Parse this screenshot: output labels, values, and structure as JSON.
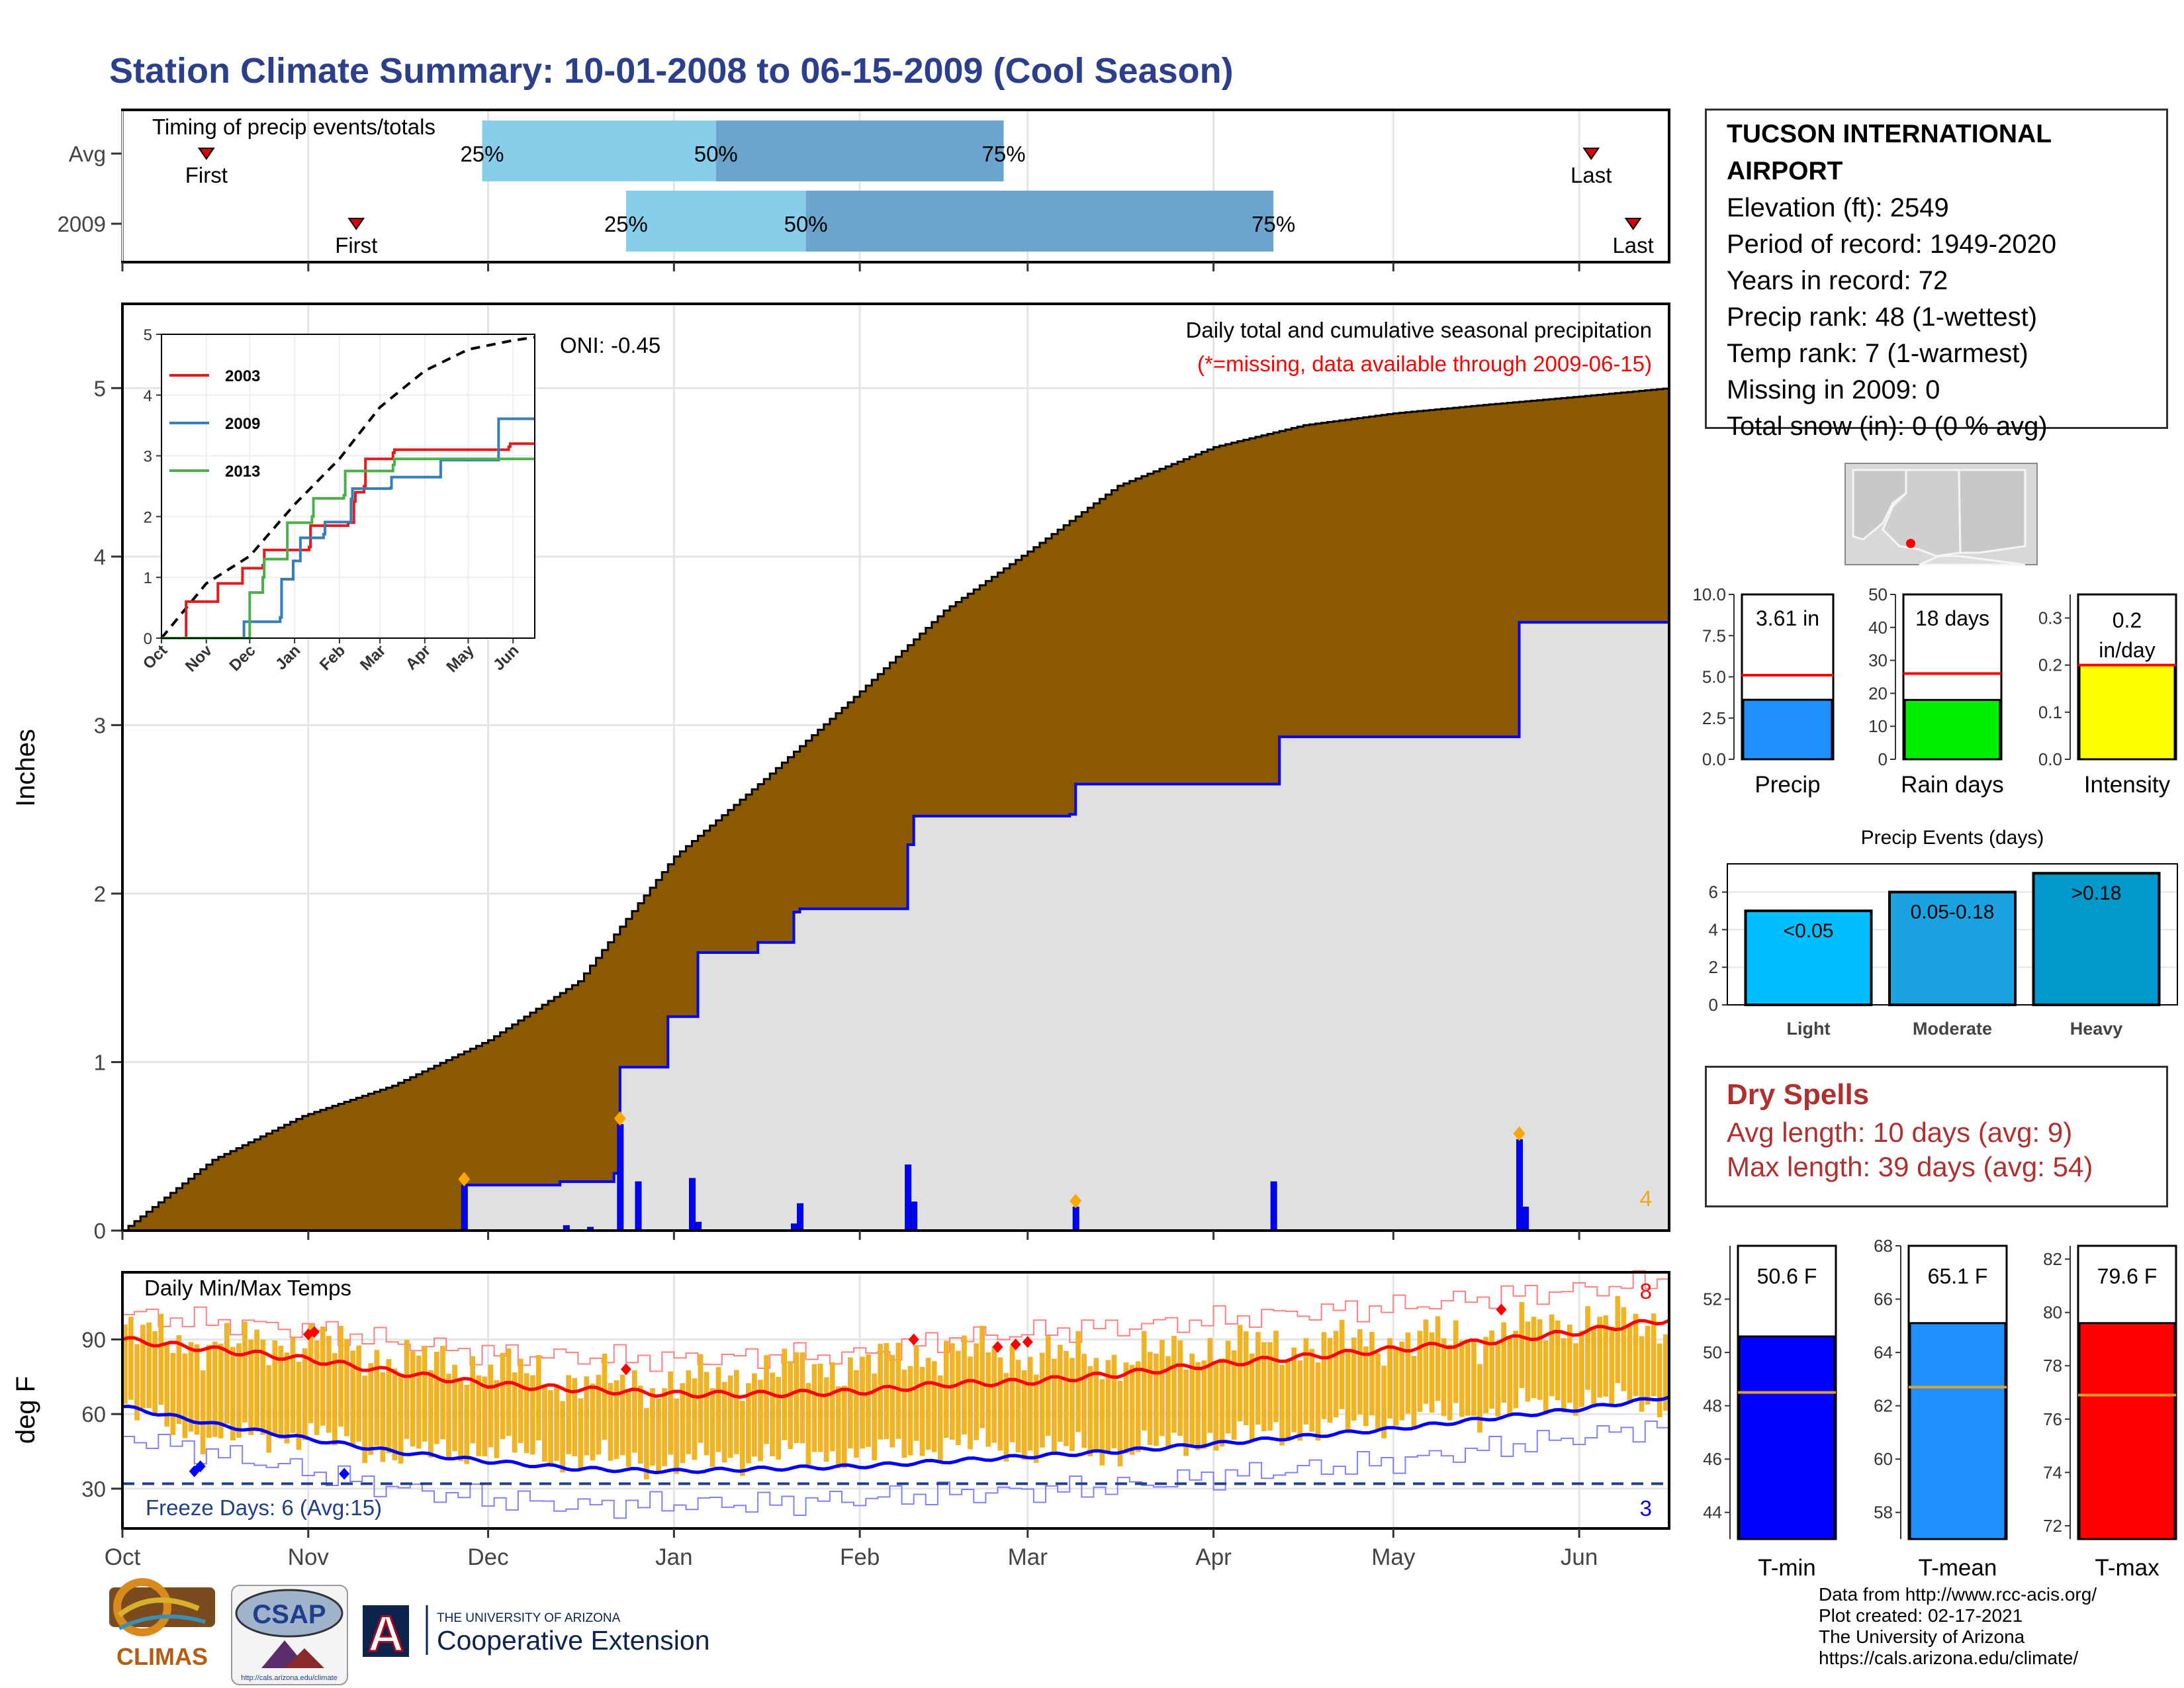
{
  "title": "Station Climate Summary: 10-01-2008 to 06-15-2009 (Cool Season)",
  "station": {
    "name": "TUCSON INTERNATIONAL AIRPORT",
    "lines": [
      "Elevation (ft): 2549",
      "Period of record: 1949-2020",
      "Years in record: 72",
      "Precip rank: 48 (1-wettest)",
      "Temp rank: 7 (1-warmest)",
      "Missing in 2009: 0",
      "Total snow (in): 0 (0 % avg)"
    ]
  },
  "colors": {
    "title": "#2b3f8c",
    "cumulative_avg": "#8b5a00",
    "cumulative_2009": "#e0e0e0",
    "line_2009": "#0000ff",
    "marker": "#ffa500",
    "red_text": "#ff0000",
    "dry_spell": "#b03030",
    "tmax_band": "#f0b323",
    "tmin_line": "#0000ff",
    "tmax_line": "#ff0000"
  },
  "timing_panel": {
    "label": "Timing of precip events/totals",
    "rows": [
      {
        "name": "Avg",
        "first": "2008-10-15",
        "last": "2009-06-03",
        "p25": "2008-11-30",
        "p50": "2009-01-08",
        "p75": "2009-02-25"
      },
      {
        "name": "2009",
        "first": "2008-11-09",
        "last": "2009-06-10",
        "p25": "2008-12-24",
        "p50": "2009-01-23",
        "p75": "2009-04-11"
      }
    ],
    "first_label": "First",
    "last_label": "Last",
    "p25_label": "25%",
    "p50_label": "50%",
    "p75_label": "75%"
  },
  "precip_panel": {
    "ylabel": "Inches",
    "oni": "ONI: -0.45",
    "caption": "Daily total and cumulative seasonal precipitation",
    "missing_note": "(*=missing, data available through 2009-06-15)",
    "count_label": "4",
    "ylim": [
      0,
      5.5
    ],
    "yticks": [
      0,
      1,
      2,
      3,
      4,
      5
    ]
  },
  "inset": {
    "ylim": [
      0,
      5
    ],
    "yticks": [
      0,
      1,
      2,
      3,
      4,
      5
    ],
    "xticks": [
      "Oct",
      "Nov",
      "Dec",
      "Jan",
      "Feb",
      "Mar",
      "Apr",
      "May",
      "Jun"
    ],
    "legend": [
      {
        "name": "2003",
        "color": "#e41a1c"
      },
      {
        "name": "2009",
        "color": "#377eb8"
      },
      {
        "name": "2013",
        "color": "#4daf4a"
      }
    ]
  },
  "temp_panel": {
    "ylabel": "deg F",
    "label": "Daily Min/Max Temps",
    "freeze_label": "Freeze Days: 6 (Avg:15)",
    "count_max": "8",
    "count_min": "3",
    "yticks": [
      30,
      60,
      90
    ],
    "ylim": [
      14,
      117
    ],
    "freeze_line": 32
  },
  "x_axis": {
    "months": [
      "Oct",
      "Nov",
      "Dec",
      "Jan",
      "Feb",
      "Mar",
      "Apr",
      "May",
      "Jun"
    ],
    "month_days": [
      0,
      31,
      61,
      92,
      123,
      151,
      182,
      212,
      243
    ],
    "total_days": 258
  },
  "summary_bars": {
    "precip": {
      "label": "Precip",
      "value": 3.61,
      "text": "3.61 in",
      "avg": 5.1,
      "ylim": [
        0,
        10
      ],
      "yticks": [
        "0.0",
        "2.5",
        "5.0",
        "7.5",
        "10.0"
      ],
      "color": "#1e90ff"
    },
    "rain_days": {
      "label": "Rain days",
      "value": 18,
      "text": "18 days",
      "avg": 26,
      "ylim": [
        0,
        50
      ],
      "yticks": [
        "0",
        "10",
        "20",
        "30",
        "40",
        "50"
      ],
      "color": "#00ee00"
    },
    "intensity": {
      "label": "Intensity",
      "value": 0.2,
      "text": "0.2",
      "text2": "in/day",
      "avg": 0.2,
      "ylim": [
        0,
        0.35
      ],
      "yticks": [
        "0.0",
        "0.1",
        "0.2",
        "0.3"
      ],
      "color": "#ffff00"
    }
  },
  "events": {
    "title": "Precip Events (days)",
    "categories": [
      "Light",
      "Moderate",
      "Heavy"
    ],
    "values": [
      5,
      6,
      7
    ],
    "labels": [
      "<0.05",
      "0.05-0.18",
      ">0.18"
    ],
    "colors": [
      "#00bfff",
      "#1aa3e0",
      "#0099cc"
    ],
    "yticks": [
      "0",
      "2",
      "4",
      "6"
    ]
  },
  "dry_spells": {
    "title": "Dry Spells",
    "avg_length": "Avg length: 10 days (avg: 9)",
    "max_length": "Max length: 39 days (avg: 54)"
  },
  "temp_bars": {
    "tmin": {
      "label": "T-min",
      "value": 50.6,
      "text": "50.6 F",
      "avg": 48.5,
      "ylim": [
        43,
        54
      ],
      "yticks": [
        "44",
        "46",
        "48",
        "50",
        "52"
      ],
      "color": "#0000ff"
    },
    "tmean": {
      "label": "T-mean",
      "value": 65.1,
      "text": "65.1 F",
      "avg": 62.7,
      "ylim": [
        57,
        68
      ],
      "yticks": [
        "58",
        "60",
        "62",
        "64",
        "66",
        "68"
      ],
      "color": "#1e90ff"
    },
    "tmax": {
      "label": "T-max",
      "value": 79.6,
      "text": "79.6 F",
      "avg": 76.9,
      "ylim": [
        71.5,
        82.5
      ],
      "yticks": [
        "72",
        "74",
        "76",
        "78",
        "80",
        "82"
      ],
      "color": "#ff0000"
    }
  },
  "credits": [
    "Data from http://www.rcc-acis.org/",
    "Plot created: 02-17-2021",
    "The University of Arizona",
    "https://cals.arizona.edu/climate/"
  ],
  "logos": {
    "climas": "CLIMAS",
    "csap": "CSAP",
    "csap_url": "http://cals.arizona.edu/climate",
    "ua_small": "THE UNIVERSITY OF ARIZONA",
    "ua_big": "Cooperative Extension",
    "ua_letter": "A"
  },
  "chart_data": [
    {
      "type": "area",
      "title": "Daily total and cumulative seasonal precipitation",
      "ylabel": "Inches",
      "ylim": [
        0,
        5.5
      ],
      "series": [
        {
          "name": "Avg",
          "x": [
            0,
            15,
            30,
            45,
            61,
            76,
            92,
            107,
            123,
            137,
            151,
            166,
            182,
            197,
            212,
            227,
            243,
            258
          ],
          "values": [
            0.0,
            0.42,
            0.68,
            0.86,
            1.13,
            1.48,
            2.22,
            2.68,
            3.2,
            3.68,
            4.03,
            4.42,
            4.65,
            4.78,
            4.85,
            4.9,
            4.95,
            5.0
          ]
        },
        {
          "name": "2009",
          "x": [
            0,
            56,
            57,
            73,
            82,
            83,
            90,
            91,
            95,
            96,
            105,
            106,
            112,
            113,
            131,
            132,
            158,
            159,
            192,
            193,
            232,
            233,
            258
          ],
          "values": [
            0.0,
            0.0,
            0.27,
            0.29,
            0.34,
            0.97,
            0.97,
            1.27,
            1.27,
            1.65,
            1.65,
            1.71,
            1.89,
            1.91,
            2.29,
            2.46,
            2.47,
            2.65,
            2.65,
            2.93,
            2.93,
            3.61,
            3.61
          ]
        },
        {
          "name": "daily 2009",
          "x": [
            57,
            74,
            78,
            83,
            86,
            95,
            96,
            112,
            113,
            131,
            132,
            159,
            192,
            233,
            234
          ],
          "values": [
            0.27,
            0.03,
            0.02,
            0.63,
            0.29,
            0.31,
            0.05,
            0.04,
            0.16,
            0.39,
            0.17,
            0.14,
            0.29,
            0.54,
            0.14
          ]
        }
      ]
    },
    {
      "type": "line",
      "title": "",
      "xticks": [
        "Oct",
        "Nov",
        "Dec",
        "Jan",
        "Feb",
        "Mar",
        "Apr",
        "May",
        "Jun"
      ],
      "ylim": [
        0,
        5
      ],
      "series": [
        {
          "name": "avg",
          "x": [
            0,
            31,
            61,
            92,
            123,
            151,
            182,
            212,
            243,
            258
          ],
          "values": [
            0,
            0.9,
            1.35,
            2.2,
            2.95,
            3.8,
            4.4,
            4.75,
            4.9,
            4.95
          ]
        },
        {
          "name": "2003",
          "x": [
            0,
            16,
            17,
            38,
            39,
            55,
            56,
            70,
            71,
            102,
            103,
            129,
            133,
            134,
            140,
            141,
            160,
            161,
            240,
            241,
            258
          ],
          "values": [
            0,
            0,
            0.6,
            0.6,
            0.9,
            0.9,
            1.15,
            1.2,
            1.45,
            1.5,
            1.85,
            1.9,
            2.25,
            2.4,
            2.5,
            2.95,
            3.05,
            3.1,
            3.15,
            3.2,
            3.2
          ]
        },
        {
          "name": "2009",
          "x": [
            0,
            56,
            57,
            82,
            83,
            90,
            91,
            95,
            96,
            112,
            113,
            131,
            132,
            158,
            159,
            192,
            193,
            232,
            233,
            258
          ],
          "values": [
            0,
            0,
            0.27,
            0.34,
            0.97,
            0.97,
            1.27,
            1.27,
            1.65,
            1.71,
            1.91,
            2.29,
            2.46,
            2.47,
            2.65,
            2.65,
            2.93,
            2.93,
            3.61,
            3.61
          ]
        },
        {
          "name": "2013",
          "x": [
            0,
            60,
            61,
            70,
            71,
            86,
            87,
            104,
            105,
            126,
            127,
            160,
            161,
            258
          ],
          "values": [
            0,
            0,
            0.75,
            1.0,
            1.3,
            1.3,
            1.9,
            2.0,
            2.3,
            2.35,
            2.75,
            2.85,
            2.95,
            2.95
          ]
        }
      ]
    },
    {
      "type": "line",
      "title": "Daily Min/Max Temps",
      "ylabel": "deg F",
      "x": [
        0,
        15,
        31,
        45,
        61,
        76,
        92,
        107,
        123,
        137,
        151,
        166,
        182,
        197,
        212,
        227,
        243,
        258
      ],
      "series": [
        {
          "name": "avg max",
          "values": [
            90,
            86,
            82,
            77,
            72,
            70,
            68,
            68,
            69,
            72,
            73,
            76,
            80,
            83,
            86,
            89,
            93,
            98
          ]
        },
        {
          "name": "avg min",
          "values": [
            63,
            56,
            50,
            45,
            41,
            38,
            37,
            38,
            39,
            41,
            43,
            45,
            48,
            51,
            54,
            58,
            62,
            67
          ]
        },
        {
          "name": "record max",
          "values": [
            100,
            97,
            94,
            89,
            84,
            83,
            82,
            83,
            84,
            90,
            93,
            95,
            98,
            101,
            103,
            107,
            110,
            114
          ]
        },
        {
          "name": "record min",
          "values": [
            51,
            44,
            37,
            30,
            26,
            23,
            24,
            24,
            26,
            28,
            29,
            31,
            35,
            38,
            41,
            46,
            51,
            56
          ]
        },
        {
          "name": "daily max 2009",
          "values": [
            93,
            88,
            90,
            82,
            79,
            73,
            72,
            78,
            80,
            86,
            84,
            82,
            87,
            88,
            90,
            92,
            98,
            96
          ]
        },
        {
          "name": "daily min 2009",
          "values": [
            64,
            52,
            54,
            46,
            48,
            44,
            42,
            46,
            46,
            50,
            48,
            47,
            52,
            56,
            60,
            63,
            68,
            66
          ]
        }
      ]
    },
    {
      "type": "bar",
      "categories": [
        "Precip"
      ],
      "values": [
        3.61
      ],
      "ylim": [
        0,
        10
      ]
    },
    {
      "type": "bar",
      "categories": [
        "Rain days"
      ],
      "values": [
        18
      ],
      "ylim": [
        0,
        50
      ]
    },
    {
      "type": "bar",
      "categories": [
        "Intensity"
      ],
      "values": [
        0.2
      ],
      "ylim": [
        0,
        0.35
      ]
    },
    {
      "type": "bar",
      "title": "Precip Events (days)",
      "categories": [
        "Light",
        "Moderate",
        "Heavy"
      ],
      "values": [
        5,
        6,
        7
      ]
    },
    {
      "type": "bar",
      "categories": [
        "T-min",
        "T-mean",
        "T-max"
      ],
      "values": [
        50.6,
        65.1,
        79.6
      ]
    }
  ]
}
